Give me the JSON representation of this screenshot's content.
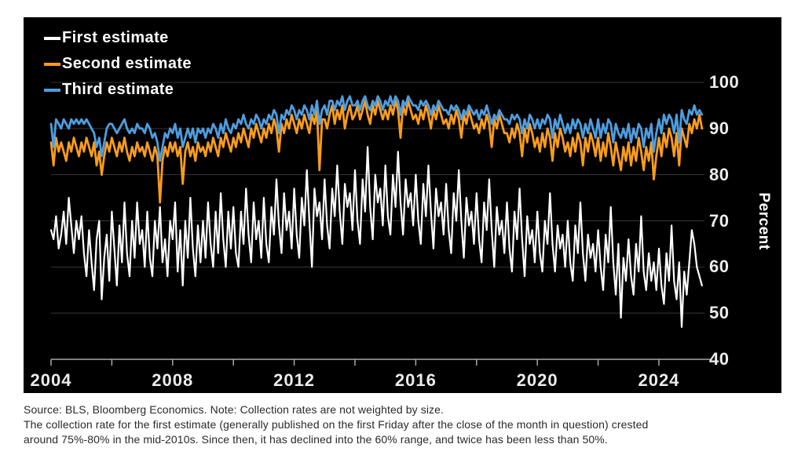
{
  "legend": [
    {
      "label": "First estimate",
      "color": "#ffffff"
    },
    {
      "label": "Second estimate",
      "color": "#f89c1c"
    },
    {
      "label": "Third estimate",
      "color": "#4d9ee0"
    }
  ],
  "caption": {
    "line1": "Source: BLS, Bloomberg Economics. Note: Collection rates are not weighted by size.",
    "line2": "The collection rate for the first estimate (generally published on the first Friday after the close of the month in question) crested",
    "line3": "around 75%-80% in the mid-2010s. Since then, it has declined into the 60% range, and twice has been less than 50%."
  },
  "chart_data": {
    "type": "line",
    "title": "",
    "xlabel": "",
    "ylabel": "Percent",
    "xlim": [
      2004,
      2025.5
    ],
    "ylim": [
      40,
      100
    ],
    "grid": "horizontal",
    "legend_position": "top-left",
    "x_unit": "monthly, Jan 2004 - Jun 2025",
    "y_ticks": [
      100,
      90,
      80,
      70,
      60,
      50,
      40
    ],
    "x_tick_years": [
      2004,
      2006,
      2008,
      2010,
      2012,
      2014,
      2016,
      2018,
      2020,
      2022,
      2024
    ],
    "x_label_years": [
      2004,
      2008,
      2012,
      2016,
      2020,
      2024
    ],
    "series": [
      {
        "name": "First estimate",
        "color": "#ffffff",
        "width": 2.2,
        "values": [
          68,
          66,
          71,
          64,
          67,
          72,
          65,
          75,
          69,
          63,
          70,
          66,
          71,
          63,
          58,
          68,
          61,
          55,
          66,
          70,
          53,
          62,
          67,
          57,
          72,
          64,
          56,
          69,
          61,
          74,
          63,
          58,
          70,
          62,
          74,
          65,
          68,
          60,
          72,
          62,
          58,
          70,
          64,
          73,
          61,
          66,
          58,
          70,
          66,
          74,
          59,
          68,
          56,
          70,
          62,
          75,
          64,
          58,
          69,
          61,
          70,
          62,
          74,
          65,
          60,
          72,
          63,
          76,
          66,
          60,
          72,
          64,
          73,
          63,
          60,
          72,
          65,
          77,
          67,
          61,
          74,
          66,
          70,
          62,
          75,
          65,
          61,
          73,
          67,
          79,
          69,
          63,
          76,
          68,
          72,
          64,
          77,
          67,
          62,
          75,
          69,
          81,
          70,
          60,
          77,
          71,
          74,
          66,
          79,
          69,
          64,
          77,
          71,
          82,
          72,
          65,
          78,
          73,
          76,
          68,
          81,
          70,
          65,
          79,
          72,
          86,
          73,
          66,
          80,
          74,
          77,
          69,
          82,
          71,
          67,
          80,
          73,
          85,
          74,
          67,
          79,
          73,
          76,
          69,
          80,
          70,
          65,
          78,
          71,
          82,
          72,
          64,
          77,
          71,
          74,
          67,
          78,
          68,
          63,
          76,
          70,
          81,
          70,
          62,
          75,
          69,
          72,
          65,
          76,
          66,
          61,
          74,
          68,
          79,
          68,
          60,
          73,
          67,
          70,
          63,
          74,
          64,
          59,
          72,
          66,
          77,
          66,
          58,
          71,
          65,
          68,
          61,
          72,
          63,
          59,
          70,
          65,
          76,
          65,
          59,
          69,
          64,
          67,
          60,
          70,
          61,
          57,
          69,
          63,
          74,
          63,
          57,
          67,
          62,
          65,
          59,
          68,
          60,
          55,
          67,
          61,
          73,
          61,
          54,
          65,
          49,
          62,
          57,
          66,
          58,
          54,
          65,
          59,
          71,
          59,
          55,
          63,
          57,
          61,
          55,
          64,
          56,
          52,
          63,
          57,
          69,
          57,
          53,
          61,
          47,
          59,
          54,
          61,
          68,
          65,
          60,
          58,
          56
        ]
      },
      {
        "name": "Second estimate",
        "color": "#f89c1c",
        "width": 2.8,
        "values": [
          87,
          82,
          88,
          85,
          87,
          85,
          83,
          87,
          85,
          88,
          86,
          84,
          87,
          85,
          88,
          86,
          84,
          87,
          82,
          85,
          80,
          84,
          87,
          85,
          88,
          86,
          84,
          87,
          85,
          88,
          85,
          83,
          86,
          84,
          87,
          85,
          86,
          84,
          87,
          85,
          83,
          86,
          84,
          74,
          83,
          86,
          84,
          87,
          85,
          87,
          84,
          86,
          78,
          85,
          87,
          84,
          86,
          83,
          87,
          85,
          86,
          84,
          87,
          85,
          88,
          86,
          84,
          88,
          86,
          89,
          87,
          85,
          88,
          86,
          89,
          87,
          90,
          88,
          86,
          90,
          88,
          91,
          89,
          87,
          90,
          88,
          91,
          89,
          92,
          90,
          85,
          91,
          89,
          92,
          90,
          93,
          91,
          89,
          92,
          90,
          93,
          91,
          89,
          93,
          91,
          94,
          81,
          92,
          92,
          90,
          93,
          95,
          91,
          94,
          92,
          95,
          90,
          93,
          95,
          92,
          93,
          95,
          92,
          94,
          96,
          93,
          91,
          95,
          93,
          96,
          94,
          92,
          94,
          92,
          95,
          93,
          96,
          94,
          88,
          95,
          93,
          96,
          94,
          92,
          93,
          91,
          94,
          92,
          95,
          93,
          90,
          94,
          92,
          95,
          93,
          91,
          92,
          90,
          93,
          91,
          94,
          92,
          88,
          93,
          91,
          94,
          92,
          90,
          91,
          89,
          92,
          90,
          93,
          91,
          86,
          92,
          90,
          93,
          91,
          89,
          89,
          87,
          90,
          88,
          91,
          89,
          84,
          90,
          87,
          91,
          89,
          86,
          88,
          85,
          89,
          86,
          90,
          88,
          83,
          89,
          86,
          90,
          88,
          85,
          87,
          84,
          88,
          85,
          89,
          87,
          82,
          88,
          85,
          89,
          87,
          84,
          88,
          83,
          87,
          84,
          89,
          86,
          82,
          87,
          84,
          81,
          86,
          83,
          87,
          82,
          86,
          83,
          88,
          85,
          81,
          86,
          83,
          87,
          79,
          84,
          88,
          84,
          89,
          86,
          90,
          88,
          84,
          89,
          82,
          90,
          88,
          86,
          91,
          89,
          92,
          90,
          93,
          90
        ]
      },
      {
        "name": "Third estimate",
        "color": "#4d9ee0",
        "width": 2.8,
        "values": [
          91,
          86,
          92,
          91,
          90,
          92,
          91,
          90,
          92,
          91,
          92,
          91,
          92,
          91,
          92,
          91,
          90,
          89,
          86,
          88,
          84,
          87,
          90,
          91,
          91,
          90,
          89,
          90,
          91,
          92,
          90,
          89,
          90,
          89,
          91,
          90,
          90,
          89,
          91,
          90,
          88,
          89,
          87,
          83,
          86,
          89,
          88,
          90,
          89,
          91,
          88,
          90,
          86,
          88,
          90,
          88,
          90,
          87,
          90,
          89,
          90,
          88,
          90,
          89,
          91,
          90,
          88,
          91,
          89,
          92,
          90,
          89,
          91,
          90,
          92,
          91,
          93,
          91,
          90,
          92,
          91,
          93,
          92,
          90,
          92,
          91,
          93,
          92,
          94,
          93,
          89,
          93,
          92,
          94,
          93,
          95,
          94,
          92,
          94,
          93,
          95,
          94,
          92,
          95,
          93,
          96,
          91,
          94,
          95,
          93,
          96,
          96,
          94,
          96,
          95,
          97,
          94,
          96,
          97,
          95,
          95,
          96,
          94,
          96,
          97,
          95,
          94,
          96,
          95,
          97,
          96,
          94,
          96,
          95,
          97,
          95,
          97,
          96,
          93,
          96,
          95,
          97,
          96,
          95,
          95,
          94,
          96,
          95,
          96,
          95,
          93,
          95,
          94,
          96,
          95,
          94,
          94,
          93,
          95,
          94,
          95,
          94,
          92,
          94,
          93,
          95,
          94,
          93,
          94,
          92,
          94,
          93,
          95,
          93,
          91,
          93,
          92,
          94,
          93,
          92,
          92,
          91,
          93,
          92,
          93,
          92,
          89,
          92,
          90,
          93,
          92,
          90,
          92,
          90,
          92,
          91,
          93,
          92,
          88,
          92,
          90,
          93,
          91,
          89,
          91,
          89,
          92,
          90,
          92,
          91,
          88,
          91,
          89,
          92,
          90,
          88,
          92,
          88,
          91,
          89,
          92,
          91,
          87,
          91,
          89,
          88,
          90,
          88,
          91,
          87,
          90,
          88,
          91,
          90,
          86,
          90,
          88,
          91,
          85,
          89,
          92,
          89,
          93,
          91,
          93,
          92,
          89,
          93,
          87,
          94,
          92,
          91,
          94,
          93,
          95,
          93,
          94,
          93
        ]
      }
    ],
    "style": {
      "background": "#000000",
      "gridline_color": "#383838",
      "axis_color": "#a8a8a8",
      "tick_label_color": "#ececec"
    }
  }
}
